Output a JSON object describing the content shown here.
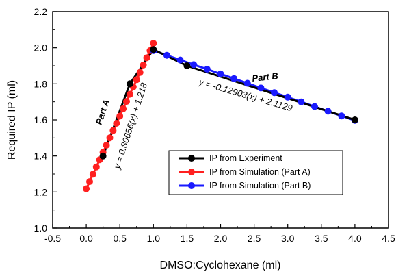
{
  "chart_data": {
    "type": "scatter",
    "xlabel": "DMSO:Cyclohexane (ml)",
    "ylabel": "Required IP (ml)",
    "xlim": [
      -0.5,
      4.5
    ],
    "ylim": [
      1.0,
      2.2
    ],
    "xticks": [
      "-0.5",
      "0.0",
      "0.5",
      "1.0",
      "1.5",
      "2.0",
      "2.5",
      "3.0",
      "3.5",
      "4.0",
      "4.5"
    ],
    "yticks": [
      "1.0",
      "1.2",
      "1.4",
      "1.6",
      "1.8",
      "2.0",
      "2.2"
    ],
    "grid": false,
    "legend_position": "bottom-right",
    "series": [
      {
        "name": "IP from Simulation (Part A)",
        "color": "#ff2020",
        "x": [
          0.0,
          0.05,
          0.1,
          0.15,
          0.2,
          0.25,
          0.3,
          0.35,
          0.4,
          0.45,
          0.5,
          0.55,
          0.6,
          0.65,
          0.7,
          0.75,
          0.8,
          0.85,
          0.9,
          0.95,
          1.0
        ],
        "y": [
          1.218,
          1.258,
          1.299,
          1.339,
          1.379,
          1.42,
          1.46,
          1.5,
          1.541,
          1.581,
          1.621,
          1.662,
          1.702,
          1.742,
          1.783,
          1.823,
          1.863,
          1.904,
          1.944,
          1.984,
          2.025
        ]
      },
      {
        "name": "IP from Simulation (Part B)",
        "color": "#1a1aff",
        "x": [
          1.0,
          1.2,
          1.4,
          1.6,
          1.8,
          2.0,
          2.2,
          2.4,
          2.6,
          2.8,
          3.0,
          3.2,
          3.4,
          3.6,
          3.8,
          4.0
        ],
        "y": [
          1.984,
          1.958,
          1.932,
          1.906,
          1.881,
          1.855,
          1.829,
          1.803,
          1.777,
          1.751,
          1.726,
          1.7,
          1.674,
          1.648,
          1.622,
          1.597
        ]
      },
      {
        "name": "IP from Experiment",
        "color": "#000000",
        "x": [
          0.25,
          0.65,
          1.0,
          1.5,
          4.0
        ],
        "y": [
          1.4,
          1.8,
          1.99,
          1.9,
          1.6
        ]
      }
    ],
    "lines": [
      {
        "color": "#000000",
        "x": [
          0.25,
          0.65,
          1.0,
          1.5,
          4.0
        ],
        "y": [
          1.4,
          1.8,
          1.99,
          1.9,
          1.6
        ]
      }
    ],
    "annotations": {
      "part_a_label": "Part A",
      "part_b_label": "Part B",
      "eq_a": "y = 0.80656(x) + 1.218",
      "eq_b": "y = -0.12903(x) + 2.1129"
    },
    "legend": [
      {
        "label": "IP from Experiment",
        "color": "#000000"
      },
      {
        "label": "IP from Simulation (Part A)",
        "color": "#ff2020"
      },
      {
        "label": "IP from Simulation (Part B)",
        "color": "#1a1aff"
      }
    ]
  }
}
